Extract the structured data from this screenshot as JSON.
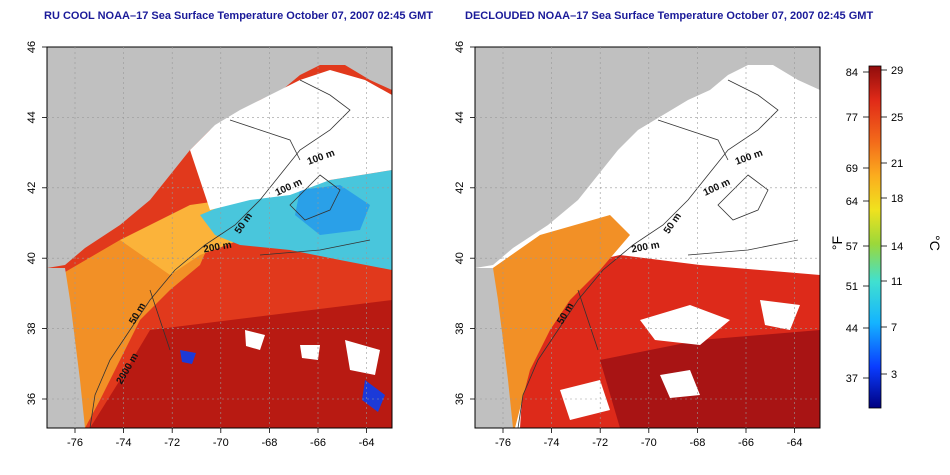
{
  "maps": [
    {
      "title": "RU COOL NOAA–17 Sea Surface Temperature October 07, 2007 02:45 GMT",
      "x_ticks": [
        "-76",
        "-74",
        "-72",
        "-70",
        "-68",
        "-66",
        "-64"
      ],
      "y_ticks": [
        "46",
        "44",
        "42",
        "40",
        "38",
        "36"
      ],
      "contour_labels": [
        "100 m",
        "100 m",
        "50 m",
        "200 m",
        "50 m",
        "2000 m"
      ]
    },
    {
      "title": "DECLOUDED NOAA–17 Sea Surface Temperature October 07, 2007 02:45 GMT",
      "x_ticks": [
        "-76",
        "-74",
        "-72",
        "-70",
        "-68",
        "-66",
        "-64"
      ],
      "y_ticks": [
        "46",
        "44",
        "42",
        "40",
        "38",
        "36"
      ],
      "contour_labels": [
        "100 m",
        "100 m",
        "50 m",
        "200 m",
        "50 m"
      ]
    }
  ],
  "colorbar": {
    "fahrenheit_label": "°F",
    "celsius_label": "°C",
    "fahrenheit_ticks": [
      "84",
      "77",
      "69",
      "64",
      "57",
      "51",
      "44",
      "37"
    ],
    "celsius_ticks": [
      "29",
      "25",
      "21",
      "18",
      "14",
      "11",
      "7",
      "3"
    ]
  },
  "colors": {
    "land": "#c0c0c0",
    "warm_sea": "#d8261a",
    "hot_sea": "#a31212",
    "cool_sea": "#f08a22",
    "cold_water": "#40c0e0",
    "cloud": "#ffffff",
    "title": "#1a1a99"
  }
}
